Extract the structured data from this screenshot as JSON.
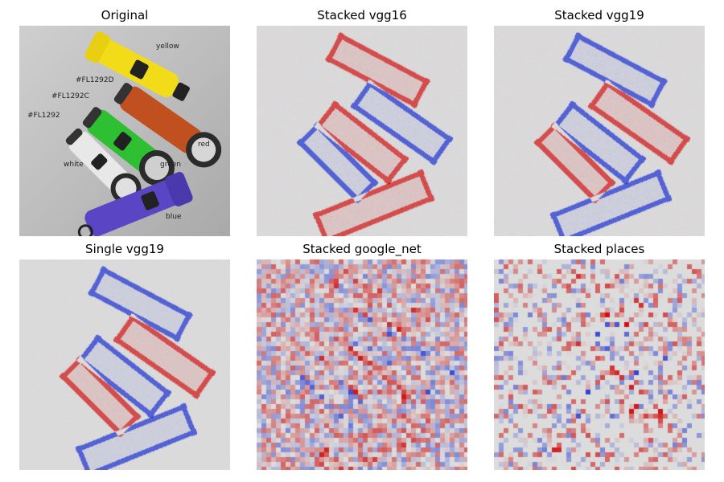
{
  "figure": {
    "panels": [
      {
        "title": "Original",
        "kind": "photo"
      },
      {
        "title": "Stacked vgg16",
        "kind": "heatmap"
      },
      {
        "title": "Stacked vgg19",
        "kind": "heatmap"
      },
      {
        "title": "Single vgg19",
        "kind": "heatmap"
      },
      {
        "title": "Stacked google_net",
        "kind": "heatmap"
      },
      {
        "title": "Stacked places",
        "kind": "heatmap"
      }
    ],
    "photo_labels": {
      "yellow": "yellow",
      "red": "red",
      "green": "green",
      "white": "white",
      "blue": "blue",
      "code_d": "#FL1292D",
      "code_c": "#FL1292C",
      "code_plain": "#FL1292"
    },
    "colors": {
      "yellow": "#f2dc1a",
      "red": "#c0501f",
      "green": "#2fbf32",
      "white": "#e8e8e8",
      "blue": "#5a45c4",
      "heat_background": "#dcdcdc",
      "heat_positive": "#d01010",
      "heat_negative": "#1a2fd0"
    }
  }
}
